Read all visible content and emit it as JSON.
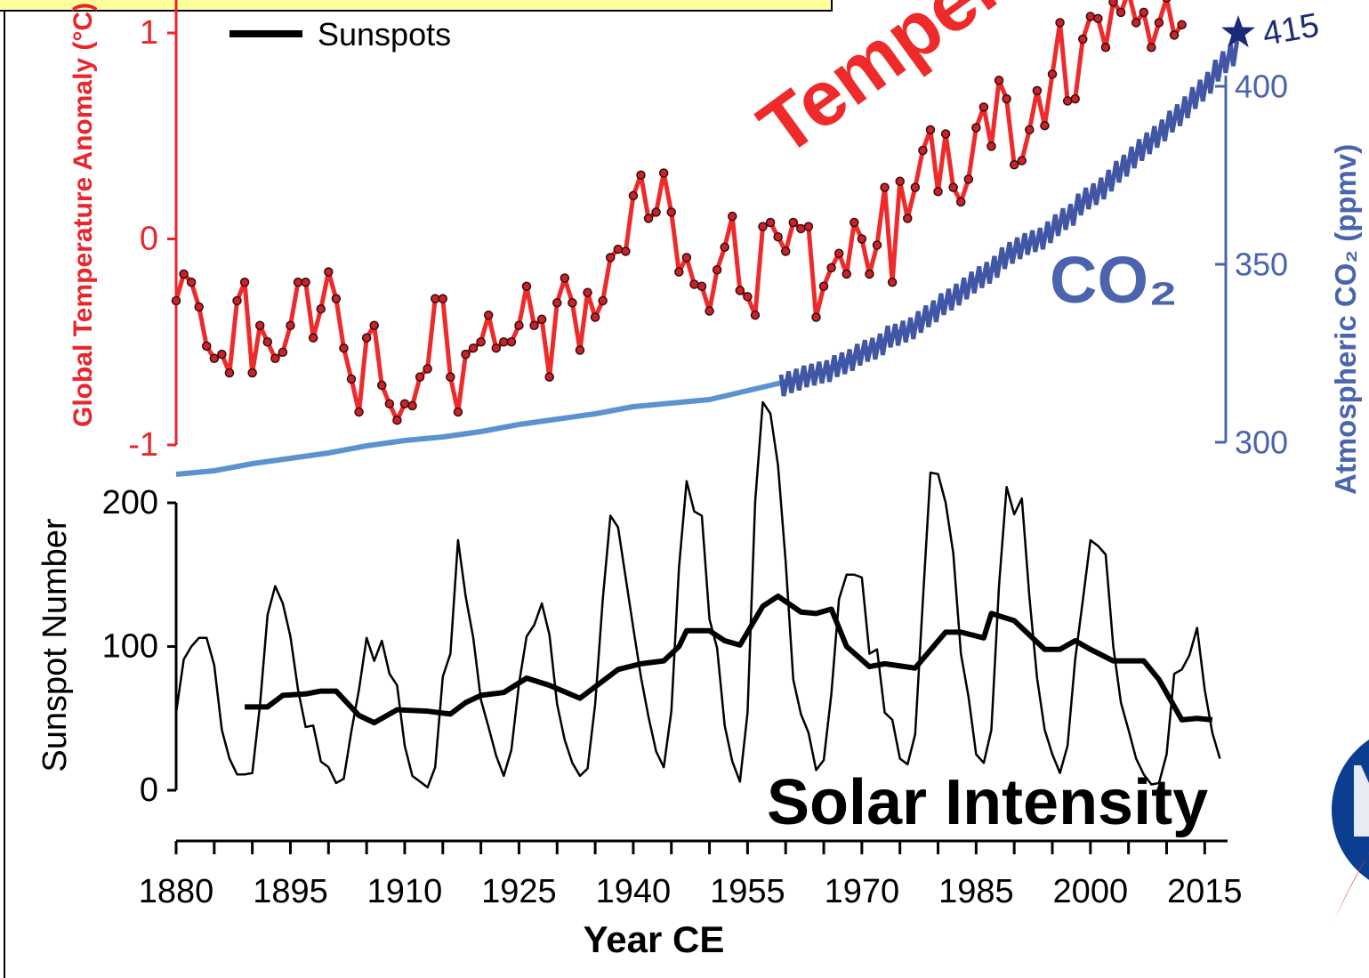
{
  "chart_data": [
    {
      "type": "line",
      "title": "Temperature",
      "ylabel": "Global Temperature Anomaly (°C)",
      "y2label": "Atmospheric CO₂ (ppmv)",
      "annotation": "CO₂",
      "xlim": [
        1880,
        2018
      ],
      "ylim": [
        -1,
        1.16
      ],
      "yticks": [
        -1,
        0,
        1
      ],
      "y2lim": [
        300,
        403
      ],
      "y2ticks": [
        300,
        350,
        400
      ],
      "series": [
        {
          "color": "#ee2a2a",
          "marker_color": "#c8232b",
          "markers": true,
          "x": [
            1880,
            1881,
            1882,
            1883,
            1884,
            1885,
            1886,
            1887,
            1888,
            1889,
            1890,
            1891,
            1892,
            1893,
            1894,
            1895,
            1896,
            1897,
            1898,
            1899,
            1900,
            1901,
            1902,
            1903,
            1904,
            1905,
            1906,
            1907,
            1908,
            1909,
            1910,
            1911,
            1912,
            1913,
            1914,
            1915,
            1916,
            1917,
            1918,
            1919,
            1920,
            1921,
            1922,
            1923,
            1924,
            1925,
            1926,
            1927,
            1928,
            1929,
            1930,
            1931,
            1932,
            1933,
            1934,
            1935,
            1936,
            1937,
            1938,
            1939,
            1940,
            1941,
            1942,
            1943,
            1944,
            1945,
            1946,
            1947,
            1948,
            1949,
            1950,
            1951,
            1952,
            1953,
            1954,
            1955,
            1956,
            1957,
            1958,
            1959,
            1960,
            1961,
            1962,
            1963,
            1964,
            1965,
            1966,
            1967,
            1968,
            1969,
            1970,
            1971,
            1972,
            1973,
            1974,
            1975,
            1976,
            1977,
            1978,
            1979,
            1980,
            1981,
            1982,
            1983,
            1984,
            1985,
            1986,
            1987,
            1988,
            1989,
            1990,
            1991,
            1992,
            1993,
            1994,
            1995,
            1996,
            1997,
            1998,
            1999,
            2000,
            2001,
            2002,
            2003,
            2004,
            2005,
            2006,
            2007,
            2008,
            2009,
            2010,
            2011,
            2012
          ],
          "values": [
            -0.3,
            -0.17,
            -0.21,
            -0.33,
            -0.52,
            -0.58,
            -0.56,
            -0.65,
            -0.3,
            -0.21,
            -0.65,
            -0.42,
            -0.5,
            -0.58,
            -0.55,
            -0.42,
            -0.21,
            -0.21,
            -0.48,
            -0.34,
            -0.16,
            -0.29,
            -0.53,
            -0.68,
            -0.84,
            -0.48,
            -0.42,
            -0.71,
            -0.8,
            -0.88,
            -0.8,
            -0.81,
            -0.67,
            -0.63,
            -0.29,
            -0.29,
            -0.67,
            -0.84,
            -0.56,
            -0.53,
            -0.5,
            -0.37,
            -0.53,
            -0.5,
            -0.5,
            -0.42,
            -0.23,
            -0.42,
            -0.39,
            -0.67,
            -0.31,
            -0.19,
            -0.31,
            -0.54,
            -0.26,
            -0.38,
            -0.3,
            -0.09,
            -0.05,
            -0.06,
            0.21,
            0.31,
            0.1,
            0.13,
            0.32,
            0.13,
            -0.16,
            -0.09,
            -0.22,
            -0.23,
            -0.35,
            -0.15,
            -0.04,
            0.11,
            -0.25,
            -0.28,
            -0.37,
            0.06,
            0.08,
            0.01,
            -0.06,
            0.08,
            0.05,
            0.06,
            -0.38,
            -0.23,
            -0.14,
            -0.07,
            -0.17,
            0.08,
            0.0,
            -0.17,
            -0.03,
            0.25,
            -0.21,
            0.28,
            0.1,
            0.25,
            0.43,
            0.53,
            0.23,
            0.51,
            0.25,
            0.18,
            0.29,
            0.54,
            0.64,
            0.45,
            0.77,
            0.68,
            0.36,
            0.38,
            0.53,
            0.72,
            0.55,
            0.8,
            1.05,
            0.67,
            0.68,
            0.97,
            1.08,
            1.07,
            0.93,
            1.15,
            1.1,
            1.2,
            1.05,
            1.1,
            0.93,
            1.05,
            1.17,
            0.99,
            1.04
          ]
        },
        {
          "color": "#5b93d0",
          "axis": "y2",
          "x": [
            1880,
            1885,
            1890,
            1895,
            1900,
            1905,
            1910,
            1915,
            1920,
            1925,
            1930,
            1935,
            1940,
            1945,
            1950,
            1955,
            1960,
            1965,
            1970,
            1975
          ],
          "values": [
            291,
            292,
            294,
            295.5,
            297,
            299,
            300.5,
            301.5,
            303,
            305,
            306.5,
            308,
            310,
            311,
            312,
            314.5,
            317,
            320,
            325,
            331
          ]
        },
        {
          "color": "#4256a6",
          "axis": "y2",
          "x": [
            1959.4,
            1959.75,
            1960.4,
            1960.75,
            1961.4,
            1961.75,
            1962.4,
            1962.75,
            1963.4,
            1963.75,
            1964.4,
            1964.75,
            1965.4,
            1965.75,
            1966.4,
            1966.75,
            1967.4,
            1967.75,
            1968.4,
            1968.75,
            1969.4,
            1969.75,
            1970.4,
            1970.75,
            1971.4,
            1971.75,
            1972.4,
            1972.75,
            1973.4,
            1973.75,
            1974.4,
            1974.75,
            1975.4,
            1975.75,
            1976.4,
            1976.75,
            1977.4,
            1977.75,
            1978.4,
            1978.75,
            1979.4,
            1979.75,
            1980.4,
            1980.75,
            1981.4,
            1981.75,
            1982.4,
            1982.75,
            1983.4,
            1983.75,
            1984.4,
            1984.75,
            1985.4,
            1985.75,
            1986.4,
            1986.75,
            1987.4,
            1987.75,
            1988.4,
            1988.75,
            1989.4,
            1989.75,
            1990.4,
            1990.75,
            1991.4,
            1991.75,
            1992.4,
            1992.75,
            1993.4,
            1993.75,
            1994.4,
            1994.75,
            1995.4,
            1995.75,
            1996.4,
            1996.75,
            1997.4,
            1997.75,
            1998.4,
            1998.75,
            1999.4,
            1999.75,
            2000.4,
            2000.75,
            2001.4,
            2001.75,
            2002.4,
            2002.75,
            2003.4,
            2003.75,
            2004.4,
            2004.75,
            2005.4,
            2005.75,
            2006.4,
            2006.75,
            2007.4,
            2007.75,
            2008.4,
            2008.75,
            2009.4,
            2009.75,
            2010.4,
            2010.75,
            2011.4,
            2011.75,
            2012.4,
            2012.75,
            2013.4,
            2013.75,
            2014.4,
            2014.75,
            2015.4,
            2015.75,
            2016.4,
            2016.75,
            2017.4,
            2017.75,
            2018.4,
            2018.75,
            2019.4
          ],
          "values": [
            319.0,
            313.0,
            319.9,
            313.9,
            320.6,
            314.6,
            321.5,
            315.5,
            322.0,
            316.0,
            322.6,
            316.6,
            323.0,
            317.0,
            324.4,
            318.4,
            325.2,
            319.2,
            326.1,
            320.1,
            327.6,
            321.6,
            328.7,
            322.7,
            329.3,
            323.3,
            330.5,
            324.5,
            332.7,
            326.7,
            333.2,
            327.2,
            334.1,
            328.1,
            335.0,
            329.0,
            336.8,
            330.8,
            338.4,
            332.4,
            339.8,
            333.8,
            341.8,
            335.8,
            343.1,
            337.1,
            344.5,
            338.5,
            346.2,
            340.2,
            347.9,
            341.9,
            349.4,
            343.4,
            350.6,
            344.6,
            352.3,
            346.3,
            354.7,
            348.7,
            356.2,
            350.2,
            357.5,
            351.5,
            358.7,
            352.7,
            359.5,
            353.5,
            360.2,
            354.2,
            362.0,
            356.0,
            364.0,
            358.0,
            365.7,
            359.7,
            366.9,
            360.9,
            369.8,
            363.8,
            371.5,
            365.5,
            372.7,
            366.7,
            374.3,
            368.3,
            376.5,
            370.5,
            379.0,
            373.0,
            380.7,
            374.7,
            383.0,
            377.0,
            385.1,
            379.1,
            387.0,
            381.0,
            388.8,
            382.8,
            390.6,
            384.6,
            393.1,
            387.1,
            394.9,
            388.9,
            397.1,
            391.1,
            399.7,
            393.7,
            401.8,
            395.8,
            404.0,
            398.0,
            407.4,
            401.4,
            409.8,
            403.8,
            411.7,
            405.7,
            415
          ]
        }
      ]
    },
    {
      "type": "line",
      "ylabel": "Sunspot Number",
      "xlabel": "Year CE",
      "annotation": "Solar Intensity",
      "legend": "upper left",
      "xlim": [
        1880,
        2018
      ],
      "xticks": [
        1880,
        1895,
        1910,
        1925,
        1940,
        1955,
        1970,
        1985,
        2000,
        2015
      ],
      "xminor_ticks": [
        1885,
        1890,
        1900,
        1905,
        1915,
        1920,
        1930,
        1935,
        1945,
        1950,
        1960,
        1965,
        1975,
        1980,
        1990,
        1995,
        2005,
        2010
      ],
      "ylim": [
        0,
        200
      ],
      "yticks": [
        0,
        100,
        200
      ],
      "series": [
        {
          "color": "#000000",
          "x": [
            1880,
            1881,
            1882,
            1883,
            1884,
            1885,
            1886,
            1887,
            1888,
            1889,
            1890,
            1891,
            1892,
            1893,
            1894,
            1895,
            1896,
            1897,
            1898,
            1899,
            1900,
            1901,
            1902,
            1903,
            1904,
            1905,
            1906,
            1907,
            1908,
            1909,
            1910,
            1911,
            1912,
            1913,
            1914,
            1915,
            1916,
            1917,
            1918,
            1919,
            1920,
            1921,
            1922,
            1923,
            1924,
            1925,
            1926,
            1927,
            1928,
            1929,
            1930,
            1931,
            1932,
            1933,
            1934,
            1935,
            1936,
            1937,
            1938,
            1939,
            1940,
            1941,
            1942,
            1943,
            1944,
            1945,
            1946,
            1947,
            1948,
            1949,
            1950,
            1951,
            1952,
            1953,
            1954,
            1955,
            1956,
            1957,
            1958,
            1959,
            1960,
            1961,
            1962,
            1963,
            1964,
            1965,
            1966,
            1967,
            1968,
            1969,
            1970,
            1971,
            1972,
            1973,
            1974,
            1975,
            1976,
            1977,
            1978,
            1979,
            1980,
            1981,
            1982,
            1983,
            1984,
            1985,
            1986,
            1987,
            1988,
            1989,
            1990,
            1991,
            1992,
            1993,
            1994,
            1995,
            1996,
            1997,
            1998,
            1999,
            2000,
            2001,
            2002,
            2003,
            2004,
            2005,
            2006,
            2007,
            2008,
            2009,
            2010,
            2011,
            2012,
            2013,
            2014,
            2015,
            2016,
            2017
          ],
          "values": [
            54,
            91,
            100,
            106,
            106,
            87,
            42,
            22,
            11,
            11,
            12,
            59,
            122,
            142,
            130,
            107,
            70,
            44,
            45,
            20,
            16,
            5,
            8,
            41,
            70,
            106,
            90,
            104,
            81,
            73,
            31,
            10,
            6,
            2,
            16,
            79,
            95,
            174,
            135,
            106,
            63,
            44,
            24,
            10,
            28,
            74,
            107,
            115,
            130,
            108,
            60,
            35,
            19,
            10,
            15,
            60,
            133,
            191,
            183,
            148,
            113,
            79,
            51,
            27,
            16,
            55,
            155,
            215,
            194,
            191,
            119,
            99,
            45,
            20,
            6,
            54,
            201,
            270,
            262,
            226,
            159,
            77,
            53,
            40,
            14,
            21,
            67,
            133,
            150,
            150,
            148,
            95,
            98,
            54,
            49,
            22,
            18,
            39,
            131,
            221,
            220,
            200,
            165,
            95,
            65,
            25,
            19,
            42,
            142,
            211,
            192,
            203,
            134,
            78,
            42,
            25,
            12,
            31,
            91,
            132,
            174,
            170,
            164,
            100,
            61,
            42,
            22,
            11,
            4,
            5,
            25,
            81,
            84,
            94,
            113,
            70,
            40,
            22
          ]
        },
        {
          "name": "Sunspots",
          "color": "#000000",
          "x": [
            1889,
            1892,
            1894,
            1897,
            1899,
            1901,
            1904,
            1906,
            1909,
            1913,
            1916,
            1918,
            1920,
            1923,
            1926,
            1929,
            1933,
            1938,
            1941,
            1944,
            1946,
            1947,
            1950,
            1952,
            1954,
            1957,
            1959,
            1962,
            1964,
            1966,
            1968,
            1971,
            1973,
            1977,
            1981,
            1983,
            1986,
            1987,
            1990,
            1994,
            1996,
            1998,
            2000,
            2003,
            2007,
            2009,
            2012,
            2014,
            2016
          ],
          "values": [
            58,
            58,
            66,
            67,
            69,
            69,
            52,
            47,
            56,
            55,
            53,
            61,
            66,
            68,
            78,
            73,
            64,
            84,
            88,
            90,
            100,
            111,
            111,
            104,
            101,
            128,
            135,
            124,
            123,
            126,
            100,
            86,
            88,
            85,
            110,
            110,
            106,
            123,
            118,
            98,
            98,
            104,
            98,
            90,
            90,
            77,
            49,
            50,
            49
          ]
        }
      ]
    }
  ]
}
